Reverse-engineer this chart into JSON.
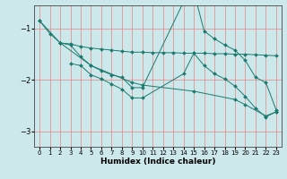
{
  "xlabel": "Humidex (Indice chaleur)",
  "background_color": "#cde8eb",
  "grid_color": "#e87878",
  "line_color": "#1a7a6e",
  "xlim": [
    -0.5,
    23.5
  ],
  "ylim": [
    -3.3,
    -0.55
  ],
  "yticks": [
    -3,
    -2,
    -1
  ],
  "xticks": [
    0,
    1,
    2,
    3,
    4,
    5,
    6,
    7,
    8,
    9,
    10,
    11,
    12,
    13,
    14,
    15,
    16,
    17,
    18,
    19,
    20,
    21,
    22,
    23
  ],
  "line1_x": [
    0,
    1,
    2,
    3,
    4,
    5,
    6,
    7,
    8,
    9,
    10,
    11,
    12,
    13,
    14,
    15,
    16,
    17,
    18,
    19,
    20,
    21,
    22,
    23
  ],
  "line1_y": [
    -0.85,
    -1.1,
    -1.28,
    -1.3,
    -1.35,
    -1.38,
    -1.4,
    -1.42,
    -1.44,
    -1.46,
    -1.46,
    -1.47,
    -1.47,
    -1.47,
    -1.48,
    -1.48,
    -1.48,
    -1.49,
    -1.49,
    -1.5,
    -1.5,
    -1.51,
    -1.52,
    -1.53
  ],
  "line2_x": [
    2,
    3,
    4,
    5,
    6,
    7,
    8,
    9,
    10,
    14,
    15,
    16,
    17,
    18,
    19,
    20,
    21,
    22,
    23
  ],
  "line2_y": [
    -1.28,
    -1.32,
    -1.55,
    -1.72,
    -1.82,
    -1.9,
    -1.95,
    -2.15,
    -2.15,
    -0.48,
    -0.28,
    -1.05,
    -1.2,
    -1.32,
    -1.42,
    -1.62,
    -1.95,
    -2.05,
    -2.58
  ],
  "line3_x": [
    3,
    4,
    5,
    6,
    7,
    8,
    9,
    10,
    14,
    15,
    16,
    17,
    18,
    19,
    20,
    21,
    22,
    23
  ],
  "line3_y": [
    -1.68,
    -1.72,
    -1.9,
    -1.98,
    -2.08,
    -2.18,
    -2.35,
    -2.35,
    -1.88,
    -1.48,
    -1.72,
    -1.88,
    -1.98,
    -2.12,
    -2.32,
    -2.55,
    -2.72,
    -2.62
  ],
  "line4_x": [
    0,
    2,
    5,
    9,
    10,
    15,
    19,
    20,
    22,
    23
  ],
  "line4_y": [
    -0.85,
    -1.28,
    -1.72,
    -2.05,
    -2.1,
    -2.22,
    -2.38,
    -2.48,
    -2.7,
    -2.62
  ]
}
